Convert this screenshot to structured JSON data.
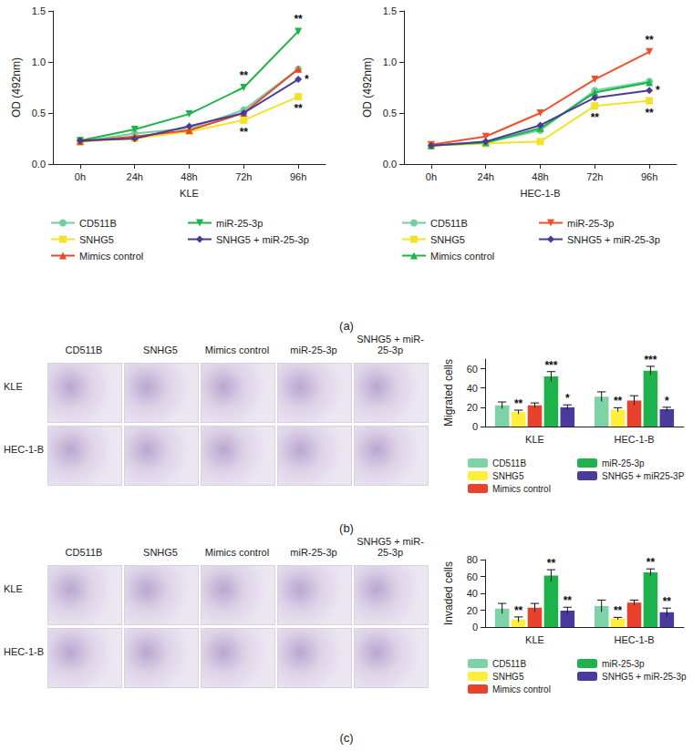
{
  "panel_labels": [
    "(a)",
    "(b)",
    "(c)"
  ],
  "image_grids": [
    {
      "columns": [
        "CD511B",
        "SNHG5",
        "Mimics control",
        "miR-25-3p",
        "SNHG5 + miR-25-3p"
      ],
      "rows": [
        "KLE",
        "HEC-1-B"
      ]
    },
    {
      "columns": [
        "CD511B",
        "SNHG5",
        "Mimics control",
        "miR-25-3p",
        "SNHG5 + miR-25-3p"
      ],
      "rows": [
        "KLE",
        "HEC-1-B"
      ]
    }
  ],
  "chart_data": [
    {
      "type": "line",
      "x_label": "KLE",
      "y_label": "OD (492nm)",
      "categories": [
        "0h",
        "24h",
        "48h",
        "72h",
        "96h"
      ],
      "ylim": [
        0,
        1.5
      ],
      "yticks": [
        {
          "value": 0,
          "label": "0.0"
        },
        0.5,
        {
          "value": 1,
          "label": "1.0"
        },
        1.5
      ],
      "grid": false,
      "series": [
        {
          "name": "CD511B",
          "color": "#72d09c",
          "marker": "circle",
          "values": [
            0.22,
            0.3,
            0.35,
            0.53,
            0.93
          ],
          "significance": [
            null,
            null,
            null,
            null,
            null
          ]
        },
        {
          "name": "SNHG5",
          "color": "#f3e22c",
          "marker": "square",
          "values": [
            0.22,
            0.25,
            0.32,
            0.43,
            0.66
          ],
          "significance": [
            null,
            null,
            null,
            "**",
            "**"
          ]
        },
        {
          "name": "Mimics control",
          "color": "#e8472a",
          "marker": "triangle",
          "values": [
            0.22,
            0.27,
            0.33,
            0.5,
            0.93
          ],
          "significance": [
            null,
            null,
            null,
            null,
            null
          ]
        },
        {
          "name": "miR-25-3p",
          "color": "#1fb34a",
          "marker": "triangle-down",
          "values": [
            0.23,
            0.34,
            0.49,
            0.75,
            1.3
          ],
          "significance": [
            null,
            null,
            null,
            "**",
            "**"
          ]
        },
        {
          "name": "SNHG5 + miR-25-3p",
          "color": "#4a3a9a",
          "marker": "diamond",
          "values": [
            0.23,
            0.25,
            0.37,
            0.5,
            0.83
          ],
          "significance": [
            null,
            null,
            null,
            null,
            "*"
          ]
        }
      ]
    },
    {
      "type": "line",
      "x_label": "HEC-1-B",
      "y_label": "OD (492nm)",
      "categories": [
        "0h",
        "24h",
        "48h",
        "72h",
        "96h"
      ],
      "ylim": [
        0,
        1.5
      ],
      "yticks": [
        {
          "value": 0,
          "label": "0.0"
        },
        0.5,
        {
          "value": 1,
          "label": "1.0"
        },
        1.5
      ],
      "grid": false,
      "series": [
        {
          "name": "CD511B",
          "color": "#72d09c",
          "marker": "circle",
          "values": [
            0.18,
            0.21,
            0.33,
            0.72,
            0.81
          ],
          "significance": [
            null,
            null,
            null,
            null,
            null
          ]
        },
        {
          "name": "SNHG5",
          "color": "#f3e22c",
          "marker": "square",
          "values": [
            0.18,
            0.2,
            0.22,
            0.57,
            0.62
          ],
          "significance": [
            null,
            null,
            null,
            "**",
            "**"
          ]
        },
        {
          "name": "Mimics control",
          "color": "#1fb34a",
          "marker": "triangle",
          "values": [
            0.18,
            0.21,
            0.35,
            0.7,
            0.8
          ],
          "significance": [
            null,
            null,
            null,
            null,
            null
          ]
        },
        {
          "name": "miR-25-3p",
          "color": "#f0502a",
          "marker": "triangle-down",
          "values": [
            0.19,
            0.27,
            0.5,
            0.83,
            1.1
          ],
          "significance": [
            null,
            null,
            null,
            null,
            "**"
          ]
        },
        {
          "name": "SNHG5 + miR-25-3p",
          "color": "#4a3a9a",
          "marker": "diamond",
          "values": [
            0.18,
            0.22,
            0.38,
            0.65,
            0.72
          ],
          "significance": [
            null,
            null,
            null,
            null,
            "*"
          ]
        }
      ]
    },
    {
      "type": "bar",
      "y_label": "Migrated cells",
      "categories": [
        "KLE",
        "HEC-1-B"
      ],
      "ylim": [
        0,
        70
      ],
      "yticks": [
        0,
        20,
        40,
        60
      ],
      "grid": false,
      "series": [
        {
          "name": "CD511B",
          "color": "#7dd3a5",
          "values": [
            22,
            31
          ],
          "errors": [
            3.5,
            5
          ],
          "significance": [
            null,
            null
          ]
        },
        {
          "name": "SNHG5",
          "color": "#ffef3a",
          "values": [
            15,
            17.5
          ],
          "errors": [
            2,
            2
          ],
          "significance": [
            "**",
            "**"
          ]
        },
        {
          "name": "Mimics control",
          "color": "#e8412c",
          "values": [
            22,
            27
          ],
          "errors": [
            2.5,
            5
          ],
          "significance": [
            null,
            null
          ]
        },
        {
          "name": "miR-25-3p",
          "color": "#1db24b",
          "values": [
            52,
            58
          ],
          "errors": [
            5,
            4.5
          ],
          "significance": [
            "***",
            "***"
          ]
        },
        {
          "name": "SNHG5 + miR25-3P",
          "color": "#4a3a9e",
          "values": [
            20,
            18
          ],
          "errors": [
            2.5,
            2
          ],
          "significance": [
            "*",
            "*"
          ]
        }
      ]
    },
    {
      "type": "bar",
      "y_label": "Invaded cells",
      "categories": [
        "KLE",
        "HEC-1-B"
      ],
      "ylim": [
        0,
        80
      ],
      "yticks": [
        0,
        20,
        40,
        60,
        80
      ],
      "grid": false,
      "series": [
        {
          "name": "CD511B",
          "color": "#7dd3a5",
          "values": [
            22,
            25
          ],
          "errors": [
            6,
            7
          ],
          "significance": [
            null,
            null
          ]
        },
        {
          "name": "SNHG5",
          "color": "#ffef3a",
          "values": [
            9,
            10
          ],
          "errors": [
            3,
            1.5
          ],
          "significance": [
            "**",
            "**"
          ]
        },
        {
          "name": "Mimics control",
          "color": "#e8412c",
          "values": [
            23,
            29
          ],
          "errors": [
            5,
            3
          ],
          "significance": [
            null,
            null
          ]
        },
        {
          "name": "miR-25-3p",
          "color": "#1db24b",
          "values": [
            61,
            65
          ],
          "errors": [
            7,
            4
          ],
          "significance": [
            "**",
            "**"
          ]
        },
        {
          "name": "SNHG5 + miR-25-3p",
          "color": "#4a3a9e",
          "values": [
            19.5,
            17.5
          ],
          "errors": [
            4,
            5
          ],
          "significance": [
            "**",
            "**"
          ]
        }
      ]
    }
  ]
}
